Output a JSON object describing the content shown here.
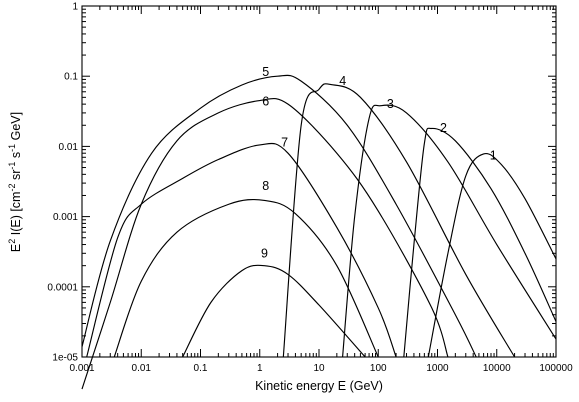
{
  "chart_data": {
    "type": "line",
    "title": "",
    "xlabel": "Kinetic energy E (GeV)",
    "ylabel_parts": {
      "prefix": "E",
      "prefix_sup": "2",
      "main": " I(E) [cm",
      "cm_sup": "-2",
      "sr": " sr",
      "sr_sup": "-1",
      "s": " s",
      "s_sup": "-1",
      "gev": " GeV]"
    },
    "xscale": "log",
    "yscale": "log",
    "xlim": [
      0.001,
      100000
    ],
    "ylim": [
      1e-05,
      1
    ],
    "grid": false,
    "legend": "none",
    "xticks": [
      {
        "value": 0.001,
        "label": "0.001"
      },
      {
        "value": 0.01,
        "label": "0.01"
      },
      {
        "value": 0.1,
        "label": "0.1"
      },
      {
        "value": 1,
        "label": "1"
      },
      {
        "value": 10,
        "label": "10"
      },
      {
        "value": 100,
        "label": "100"
      },
      {
        "value": 1000,
        "label": "1000"
      },
      {
        "value": 10000,
        "label": "10000"
      },
      {
        "value": 100000,
        "label": "100000"
      }
    ],
    "yticks": [
      {
        "value": 1e-05,
        "label": "1e-05"
      },
      {
        "value": 0.0001,
        "label": "0.0001"
      },
      {
        "value": 0.001,
        "label": "0.001"
      },
      {
        "value": 0.01,
        "label": "0.01"
      },
      {
        "value": 0.1,
        "label": "0.1"
      },
      {
        "value": 1,
        "label": "1"
      }
    ],
    "series": [
      {
        "label": "1",
        "label_at": [
          7600,
          0.0065
        ],
        "points": [
          [
            700,
            1e-05
          ],
          [
            1500,
            0.0003
          ],
          [
            3000,
            0.0038
          ],
          [
            6000,
            0.0078
          ],
          [
            12000,
            0.0055
          ],
          [
            30000,
            0.0018
          ],
          [
            100000,
            0.00025
          ]
        ]
      },
      {
        "label": "2",
        "label_at": [
          1100,
          0.016
        ],
        "points": [
          [
            270,
            1e-05
          ],
          [
            400,
            0.0004
          ],
          [
            600,
            0.011
          ],
          [
            800,
            0.018
          ],
          [
            2000,
            0.012
          ],
          [
            8000,
            0.0025
          ],
          [
            30000,
            0.0003
          ],
          [
            100000,
            3.2e-05
          ]
        ]
      },
      {
        "label": "3",
        "label_at": [
          140,
          0.035
        ],
        "points": [
          [
            25,
            1e-05
          ],
          [
            40,
            0.001
          ],
          [
            70,
            0.025
          ],
          [
            110,
            0.038
          ],
          [
            300,
            0.03
          ],
          [
            1500,
            0.006
          ],
          [
            10000,
            0.0004
          ],
          [
            100000,
            1.8e-05
          ]
        ]
      },
      {
        "label": "4",
        "label_at": [
          22,
          0.075
        ],
        "points": [
          [
            2.5,
            1e-05
          ],
          [
            5,
            0.02
          ],
          [
            10,
            0.065
          ],
          [
            16,
            0.076
          ],
          [
            50,
            0.05
          ],
          [
            300,
            0.006
          ],
          [
            3000,
            0.00015
          ],
          [
            20000,
            1e-05
          ]
        ]
      },
      {
        "label": "5",
        "label_at": [
          1.1,
          0.1
        ],
        "points": [
          [
            0.001,
            1.4e-05
          ],
          [
            0.003,
            0.00045
          ],
          [
            0.015,
            0.008
          ],
          [
            0.1,
            0.035
          ],
          [
            0.5,
            0.075
          ],
          [
            2,
            0.1
          ],
          [
            5,
            0.085
          ],
          [
            30,
            0.02
          ],
          [
            200,
            0.0015
          ],
          [
            2000,
            4e-05
          ],
          [
            4500,
            1e-05
          ]
        ]
      },
      {
        "label": "6",
        "label_at": [
          1.1,
          0.038
        ],
        "points": [
          [
            0.001,
            3.5e-06
          ],
          [
            0.003,
            6e-05
          ],
          [
            0.01,
            0.0015
          ],
          [
            0.04,
            0.012
          ],
          [
            0.2,
            0.03
          ],
          [
            1,
            0.045
          ],
          [
            3,
            0.04
          ],
          [
            20,
            0.008
          ],
          [
            100,
            0.0012
          ],
          [
            800,
            5e-05
          ],
          [
            1500,
            1e-05
          ]
        ]
      },
      {
        "label": "7",
        "label_at": [
          2.3,
          0.01
        ],
        "points": [
          [
            0.0012,
            1e-05
          ],
          [
            0.004,
            0.0005
          ],
          [
            0.01,
            0.0015
          ],
          [
            0.05,
            0.0035
          ],
          [
            0.2,
            0.0065
          ],
          [
            1,
            0.0105
          ],
          [
            3,
            0.008
          ],
          [
            20,
            0.0007
          ],
          [
            100,
            5e-05
          ],
          [
            200,
            1e-05
          ]
        ]
      },
      {
        "label": "8",
        "label_at": [
          1.1,
          0.0024
        ],
        "points": [
          [
            0.0035,
            1e-05
          ],
          [
            0.01,
            0.00012
          ],
          [
            0.04,
            0.0006
          ],
          [
            0.3,
            0.0015
          ],
          [
            1.2,
            0.0017
          ],
          [
            4,
            0.0011
          ],
          [
            20,
            0.0002
          ],
          [
            100,
            1e-05
          ]
        ]
      },
      {
        "label": "9",
        "label_at": [
          1.05,
          0.00026
        ],
        "points": [
          [
            0.05,
            1e-05
          ],
          [
            0.15,
            6e-05
          ],
          [
            0.5,
            0.00017
          ],
          [
            1.2,
            0.0002
          ],
          [
            3,
            0.00015
          ],
          [
            10,
            5.5e-05
          ],
          [
            60,
            1e-05
          ]
        ]
      }
    ]
  }
}
